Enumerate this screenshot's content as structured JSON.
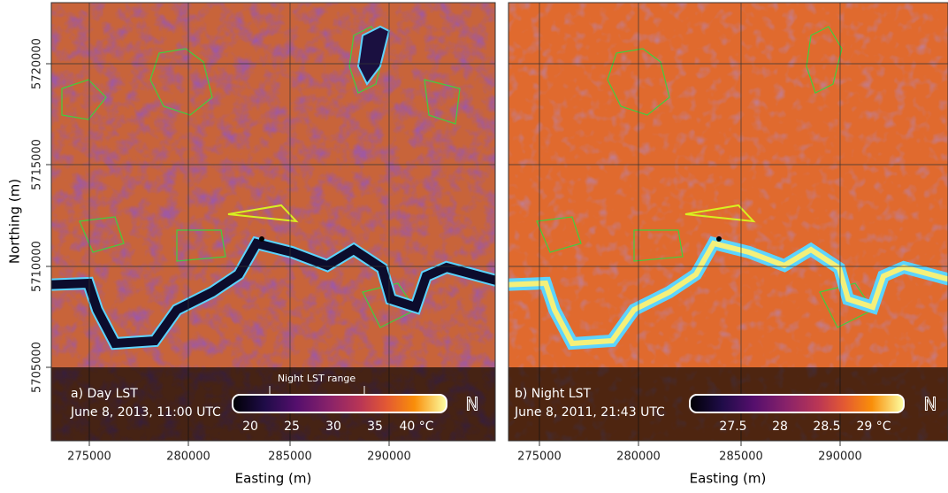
{
  "axes": {
    "x_title": "Easting (m)",
    "y_title": "Northing (m)",
    "x_ticks": [
      "275000",
      "280000",
      "285000",
      "290000"
    ],
    "y_ticks": [
      "5720000",
      "5715000",
      "5710000",
      "5705000"
    ]
  },
  "north_label": "N",
  "panels": [
    {
      "label": "a) Day LST",
      "date": "June 8, 2013, 11:00 UTC",
      "annotation": "Night LST range",
      "colorbar_ticks": [
        "20",
        "25",
        "30",
        "35",
        "40 °C"
      ]
    },
    {
      "label": "b) Night LST",
      "date": "June 8, 2011, 21:43 UTC",
      "colorbar_ticks": [
        "27.5",
        "28",
        "28.5",
        "29 °C"
      ]
    }
  ]
}
